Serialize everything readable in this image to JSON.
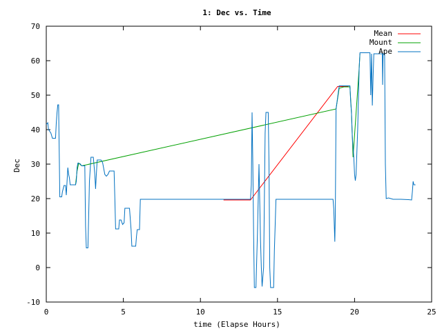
{
  "chart_data": {
    "type": "line",
    "title": "1: Dec vs. Time",
    "xlabel": "time (Elapse Hours)",
    "ylabel": "Dec",
    "xlim": [
      0,
      25
    ],
    "ylim": [
      -10,
      70
    ],
    "xticks": [
      0,
      5,
      10,
      15,
      20,
      25
    ],
    "yticks": [
      -10,
      0,
      10,
      20,
      30,
      40,
      50,
      60,
      70
    ],
    "grid": false,
    "legend_position": "top-right",
    "series": [
      {
        "name": "Mean",
        "color": "#ff0000",
        "points": [
          [
            11.5,
            19.6
          ],
          [
            13.25,
            19.6
          ],
          [
            18.9,
            52.5
          ],
          [
            19.6,
            52.5
          ]
        ]
      },
      {
        "name": "Mount",
        "color": "#00a000",
        "points": [
          [
            1.6,
            24
          ],
          [
            1.9,
            24
          ],
          [
            2.0,
            28
          ],
          [
            2.1,
            30.3
          ],
          [
            2.3,
            29.5
          ],
          [
            18.8,
            46
          ],
          [
            19.0,
            52
          ],
          [
            19.3,
            52.4
          ],
          [
            19.7,
            52.4
          ],
          [
            19.8,
            45
          ],
          [
            19.9,
            32
          ],
          [
            20.3,
            58
          ],
          [
            20.35,
            62
          ]
        ]
      },
      {
        "name": "Ape",
        "color": "#0070c0",
        "points": [
          [
            0,
            41.5
          ],
          [
            0.1,
            42
          ],
          [
            0.15,
            40
          ],
          [
            0.3,
            39
          ],
          [
            0.4,
            37.5
          ],
          [
            0.6,
            37.5
          ],
          [
            0.65,
            42
          ],
          [
            0.7,
            45
          ],
          [
            0.75,
            47.2
          ],
          [
            0.8,
            47.2
          ],
          [
            0.82,
            40
          ],
          [
            0.85,
            30
          ],
          [
            0.88,
            20.5
          ],
          [
            1.0,
            20.5
          ],
          [
            1.05,
            22
          ],
          [
            1.15,
            23.8
          ],
          [
            1.25,
            23.8
          ],
          [
            1.3,
            21
          ],
          [
            1.35,
            25
          ],
          [
            1.4,
            29
          ],
          [
            1.45,
            27
          ],
          [
            1.5,
            26
          ],
          [
            1.55,
            24
          ],
          [
            1.9,
            24
          ],
          [
            1.95,
            25
          ],
          [
            2.0,
            29
          ],
          [
            2.05,
            30.3
          ],
          [
            2.2,
            30.1
          ],
          [
            2.3,
            29.5
          ],
          [
            2.5,
            29.5
          ],
          [
            2.55,
            12
          ],
          [
            2.6,
            5.7
          ],
          [
            2.7,
            5.7
          ],
          [
            2.75,
            15
          ],
          [
            2.8,
            25
          ],
          [
            2.9,
            32
          ],
          [
            3.05,
            32
          ],
          [
            3.15,
            27
          ],
          [
            3.2,
            22.8
          ],
          [
            3.25,
            27
          ],
          [
            3.3,
            31.2
          ],
          [
            3.4,
            31.2
          ],
          [
            3.55,
            31.2
          ],
          [
            3.65,
            30.5
          ],
          [
            3.8,
            27
          ],
          [
            3.9,
            26.5
          ],
          [
            4.0,
            27
          ],
          [
            4.1,
            28
          ],
          [
            4.4,
            28
          ],
          [
            4.45,
            20
          ],
          [
            4.5,
            11.2
          ],
          [
            4.7,
            11.2
          ],
          [
            4.75,
            13.8
          ],
          [
            4.85,
            13.8
          ],
          [
            4.95,
            12.5
          ],
          [
            5.05,
            13
          ],
          [
            5.1,
            17.2
          ],
          [
            5.4,
            17.2
          ],
          [
            5.5,
            11
          ],
          [
            5.55,
            6.2
          ],
          [
            5.8,
            6.2
          ],
          [
            5.85,
            9
          ],
          [
            5.9,
            11
          ],
          [
            6.05,
            11
          ],
          [
            6.1,
            19.8
          ],
          [
            11.5,
            19.8
          ],
          [
            13.25,
            19.8
          ],
          [
            13.3,
            24
          ],
          [
            13.35,
            45
          ],
          [
            13.4,
            30
          ],
          [
            13.45,
            10
          ],
          [
            13.5,
            -5.8
          ],
          [
            13.6,
            -5.8
          ],
          [
            13.7,
            10
          ],
          [
            13.75,
            20
          ],
          [
            13.8,
            30
          ],
          [
            13.85,
            19
          ],
          [
            13.9,
            8
          ],
          [
            13.95,
            0
          ],
          [
            14.0,
            -5.5
          ],
          [
            14.1,
            0
          ],
          [
            14.15,
            19.6
          ],
          [
            14.2,
            39
          ],
          [
            14.25,
            45
          ],
          [
            14.4,
            45
          ],
          [
            14.45,
            30
          ],
          [
            14.5,
            0
          ],
          [
            14.55,
            -5.8
          ],
          [
            14.75,
            -5.8
          ],
          [
            14.8,
            5
          ],
          [
            14.9,
            19.8
          ],
          [
            18.6,
            19.8
          ],
          [
            18.65,
            17
          ],
          [
            18.7,
            10
          ],
          [
            18.72,
            7.5
          ],
          [
            18.75,
            15
          ],
          [
            18.8,
            46
          ],
          [
            19.0,
            52.7
          ],
          [
            19.7,
            52.7
          ],
          [
            19.75,
            48
          ],
          [
            19.8,
            45
          ],
          [
            19.85,
            38
          ],
          [
            19.95,
            32
          ],
          [
            20.0,
            27
          ],
          [
            20.05,
            25.2
          ],
          [
            20.1,
            27
          ],
          [
            20.2,
            40
          ],
          [
            20.3,
            58
          ],
          [
            20.35,
            62.3
          ],
          [
            21.0,
            62.3
          ],
          [
            21.05,
            50
          ],
          [
            21.1,
            62
          ],
          [
            21.15,
            47
          ],
          [
            21.2,
            55
          ],
          [
            21.25,
            62
          ],
          [
            21.8,
            62
          ],
          [
            21.82,
            53
          ],
          [
            21.85,
            62
          ],
          [
            21.95,
            62
          ],
          [
            22.0,
            30
          ],
          [
            22.05,
            20
          ],
          [
            22.2,
            20.2
          ],
          [
            22.5,
            19.8
          ],
          [
            23.0,
            19.8
          ],
          [
            23.5,
            19.7
          ],
          [
            23.7,
            19.6
          ],
          [
            23.75,
            22
          ],
          [
            23.8,
            25
          ],
          [
            23.85,
            24
          ],
          [
            23.95,
            24
          ]
        ]
      }
    ]
  }
}
